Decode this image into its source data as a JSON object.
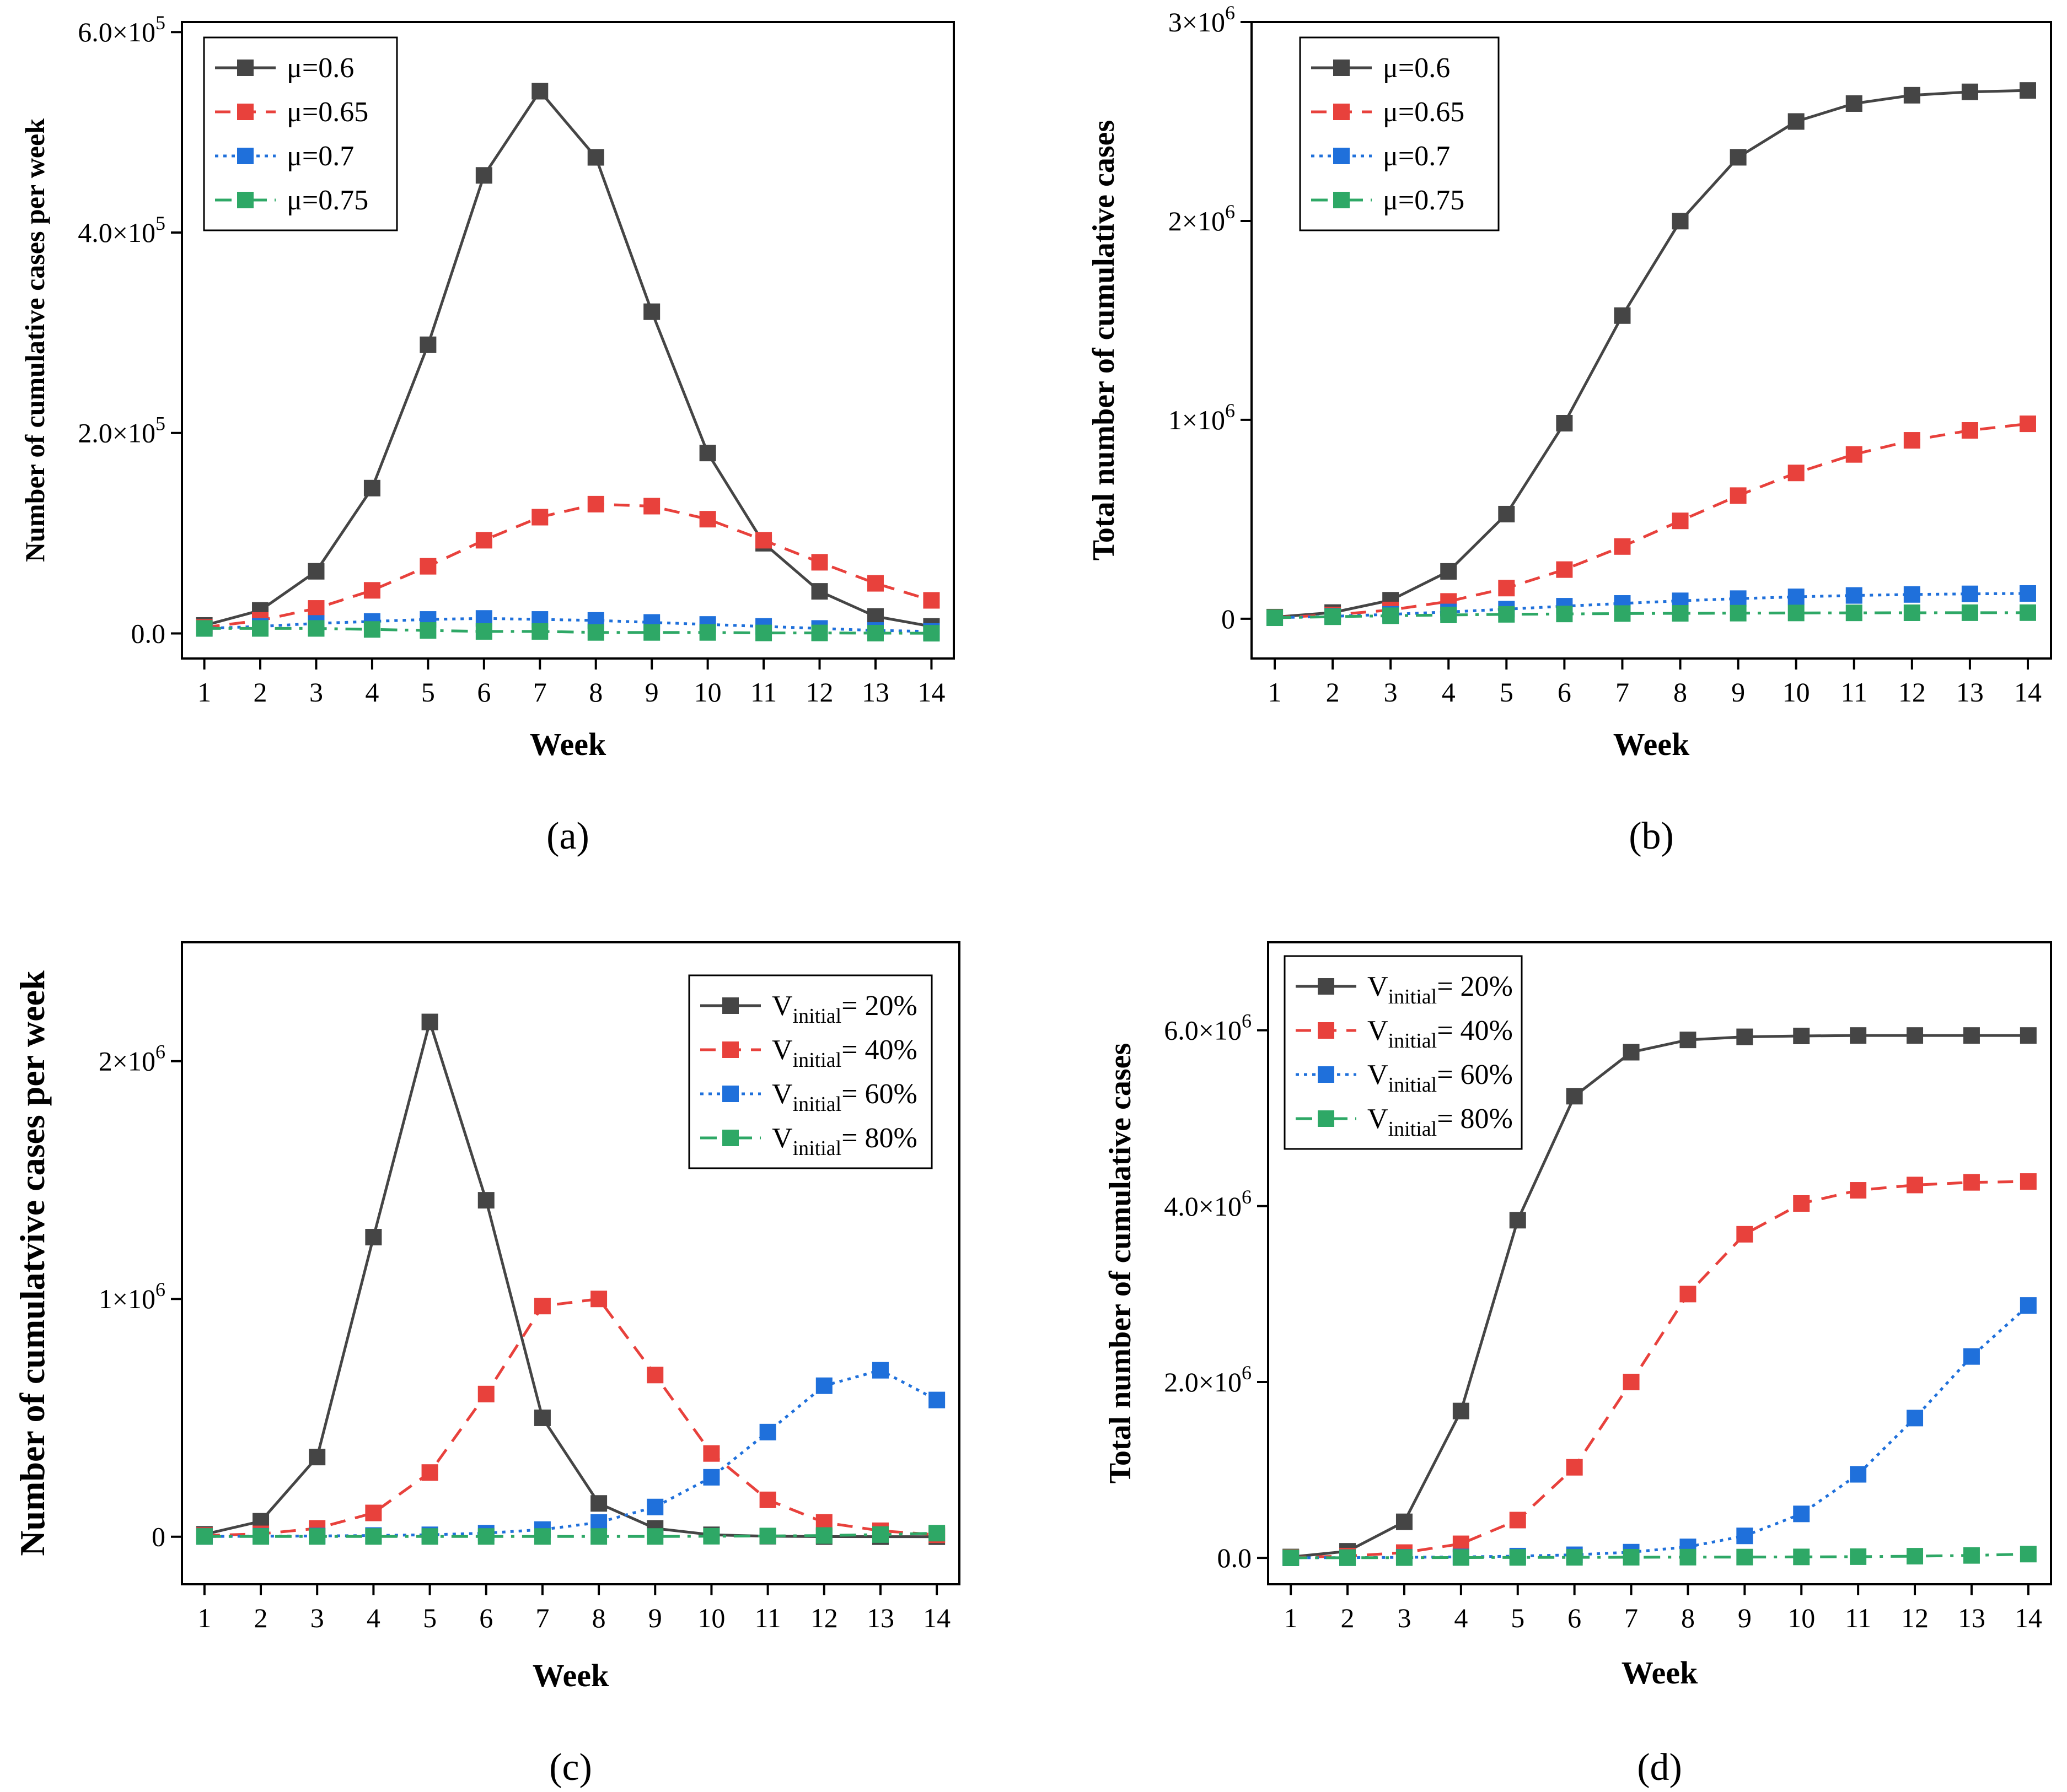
{
  "colors": {
    "black": "#454545",
    "red": "#e8413c",
    "blue": "#1f70db",
    "green": "#2ea866"
  },
  "chart_data": [
    {
      "type": "line",
      "panel": "a",
      "panel_label": "(a)",
      "xlabel": "Week",
      "ylabel": "Number of cumulative cases per week",
      "x": [
        1,
        2,
        3,
        4,
        5,
        6,
        7,
        8,
        9,
        10,
        11,
        12,
        13,
        14
      ],
      "xlim": [
        0.6,
        14.4
      ],
      "ylim": [
        -25000,
        610000
      ],
      "yticks": [
        0,
        200000,
        400000,
        600000
      ],
      "ytick_labels": [
        {
          "m": "0.0",
          "e": ""
        },
        {
          "m": "2.0×10",
          "e": "5"
        },
        {
          "m": "4.0×10",
          "e": "5"
        },
        {
          "m": "6.0×10",
          "e": "5"
        }
      ],
      "legend_position": "top-left",
      "series": [
        {
          "name": "μ=0.6",
          "label_main": "μ=0.6",
          "label_sub": "",
          "label_tail": "",
          "style": "solid",
          "color": "#454545",
          "values": [
            8000,
            23000,
            62000,
            145000,
            288000,
            457000,
            541000,
            475000,
            321000,
            180000,
            90000,
            42000,
            17000,
            7000
          ]
        },
        {
          "name": "μ=0.65",
          "label_main": "μ=0.65",
          "label_sub": "",
          "label_tail": "",
          "style": "dashed",
          "color": "#e8413c",
          "values": [
            6000,
            13000,
            25000,
            43000,
            67000,
            93000,
            116000,
            129000,
            127000,
            114000,
            93000,
            71000,
            50000,
            33000
          ]
        },
        {
          "name": "μ=0.7",
          "label_main": "μ=0.7",
          "label_sub": "",
          "label_tail": "",
          "style": "dotted",
          "color": "#1f70db",
          "values": [
            5000,
            7000,
            10000,
            12000,
            14000,
            15000,
            14000,
            13000,
            11000,
            9000,
            7000,
            5000,
            3000,
            2000
          ]
        },
        {
          "name": "μ=0.75",
          "label_main": "μ=0.75",
          "label_sub": "",
          "label_tail": "",
          "style": "dashdot",
          "color": "#2ea866",
          "values": [
            5000,
            5000,
            5000,
            4000,
            3000,
            2000,
            2000,
            1000,
            1000,
            1000,
            500,
            500,
            300,
            200
          ]
        }
      ]
    },
    {
      "type": "line",
      "panel": "b",
      "panel_label": "(b)",
      "xlabel": "Week",
      "ylabel": "Total number of cumulative cases",
      "x": [
        1,
        2,
        3,
        4,
        5,
        6,
        7,
        8,
        9,
        10,
        11,
        12,
        13,
        14
      ],
      "xlim": [
        0.6,
        14.4
      ],
      "ylim": [
        -200000,
        3000000
      ],
      "yticks": [
        0,
        1000000,
        2000000,
        3000000
      ],
      "ytick_labels": [
        {
          "m": "0",
          "e": ""
        },
        {
          "m": "1×10",
          "e": "6"
        },
        {
          "m": "2×10",
          "e": "6"
        },
        {
          "m": "3×10",
          "e": "6"
        }
      ],
      "legend_position": "top-left",
      "series": [
        {
          "name": "μ=0.6",
          "label_main": "μ=0.6",
          "label_sub": "",
          "label_tail": "",
          "style": "solid",
          "color": "#454545",
          "values": [
            8000,
            31000,
            93000,
            238000,
            526000,
            983000,
            1524000,
            1999000,
            2320000,
            2500000,
            2590000,
            2632000,
            2649000,
            2656000
          ]
        },
        {
          "name": "μ=0.65",
          "label_main": "μ=0.65",
          "label_sub": "",
          "label_tail": "",
          "style": "dashed",
          "color": "#e8413c",
          "values": [
            6000,
            19000,
            44000,
            87000,
            154000,
            247000,
            363000,
            492000,
            619000,
            733000,
            826000,
            897000,
            947000,
            980000
          ]
        },
        {
          "name": "μ=0.7",
          "label_main": "μ=0.7",
          "label_sub": "",
          "label_tail": "",
          "style": "dotted",
          "color": "#1f70db",
          "values": [
            5000,
            12000,
            22000,
            34000,
            48000,
            63000,
            77000,
            90000,
            101000,
            110000,
            117000,
            122000,
            125000,
            127000
          ]
        },
        {
          "name": "μ=0.75",
          "label_main": "μ=0.75",
          "label_sub": "",
          "label_tail": "",
          "style": "dashdot",
          "color": "#2ea866",
          "values": [
            5000,
            10000,
            15000,
            19000,
            22000,
            24000,
            26000,
            27000,
            28000,
            29000,
            29500,
            30000,
            30300,
            30500
          ]
        }
      ]
    },
    {
      "type": "line",
      "panel": "c",
      "panel_label": "(c)",
      "xlabel": "Week",
      "ylabel": "Number of cumulatvive cases per week",
      "x": [
        1,
        2,
        3,
        4,
        5,
        6,
        7,
        8,
        9,
        10,
        11,
        12,
        13,
        14
      ],
      "xlim": [
        0.6,
        14.4
      ],
      "ylim": [
        -200000,
        2500000
      ],
      "yticks": [
        0,
        1000000,
        2000000
      ],
      "ytick_labels": [
        {
          "m": "0",
          "e": ""
        },
        {
          "m": "1×10",
          "e": "6"
        },
        {
          "m": "2×10",
          "e": "6"
        }
      ],
      "legend_position": "top-right",
      "series": [
        {
          "name": "Vinitial= 20%",
          "label_main": "V",
          "label_sub": "initial",
          "label_tail": "= 20%",
          "style": "solid",
          "color": "#454545",
          "values": [
            10000,
            65000,
            335000,
            1260000,
            2165000,
            1415000,
            500000,
            140000,
            35000,
            8000,
            2000,
            500,
            100,
            0
          ]
        },
        {
          "name": "Vinitial= 40%",
          "label_main": "V",
          "label_sub": "initial",
          "label_tail": "= 40%",
          "style": "dashed",
          "color": "#e8413c",
          "values": [
            5000,
            12000,
            35000,
            100000,
            270000,
            600000,
            970000,
            1000000,
            680000,
            350000,
            155000,
            60000,
            25000,
            8000
          ]
        },
        {
          "name": "Vinitial= 60%",
          "label_main": "V",
          "label_sub": "initial",
          "label_tail": "= 60%",
          "style": "dotted",
          "color": "#1f70db",
          "values": [
            1000,
            2000,
            3000,
            5000,
            8000,
            15000,
            30000,
            60000,
            125000,
            250000,
            440000,
            635000,
            700000,
            575000
          ]
        },
        {
          "name": "Vinitial= 80%",
          "label_main": "V",
          "label_sub": "initial",
          "label_tail": "= 80%",
          "style": "dashdot",
          "color": "#2ea866",
          "values": [
            1000,
            1000,
            1000,
            1000,
            1000,
            1000,
            1000,
            1000,
            1000,
            2000,
            3000,
            5000,
            9000,
            15000
          ]
        }
      ]
    },
    {
      "type": "line",
      "panel": "d",
      "panel_label": "(d)",
      "xlabel": "Week",
      "ylabel": "Total number of cumulative cases",
      "x": [
        1,
        2,
        3,
        4,
        5,
        6,
        7,
        8,
        9,
        10,
        11,
        12,
        13,
        14
      ],
      "xlim": [
        0.6,
        14.4
      ],
      "ylim": [
        -300000,
        7000000
      ],
      "yticks": [
        0,
        2000000,
        4000000,
        6000000
      ],
      "ytick_labels": [
        {
          "m": "0.0",
          "e": ""
        },
        {
          "m": "2.0×10",
          "e": "6"
        },
        {
          "m": "4.0×10",
          "e": "6"
        },
        {
          "m": "6.0×10",
          "e": "6"
        }
      ],
      "legend_position": "top-left",
      "series": [
        {
          "name": "Vinitial= 20%",
          "label_main": "V",
          "label_sub": "initial",
          "label_tail": "= 20%",
          "style": "solid",
          "color": "#454545",
          "values": [
            10000,
            75000,
            410000,
            1670000,
            3840000,
            5250000,
            5750000,
            5890000,
            5925000,
            5935000,
            5940000,
            5940000,
            5940000,
            5940000
          ]
        },
        {
          "name": "Vinitial= 40%",
          "label_main": "V",
          "label_sub": "initial",
          "label_tail": "= 40%",
          "style": "dashed",
          "color": "#e8413c",
          "values": [
            5000,
            20000,
            60000,
            160000,
            430000,
            1030000,
            2000000,
            3000000,
            3680000,
            4030000,
            4180000,
            4240000,
            4270000,
            4280000
          ]
        },
        {
          "name": "Vinitial= 60%",
          "label_main": "V",
          "label_sub": "initial",
          "label_tail": "= 60%",
          "style": "dotted",
          "color": "#1f70db",
          "values": [
            1000,
            3000,
            6000,
            11000,
            20000,
            35000,
            65000,
            125000,
            250000,
            500000,
            950000,
            1590000,
            2290000,
            2870000
          ]
        },
        {
          "name": "Vinitial= 80%",
          "label_main": "V",
          "label_sub": "initial",
          "label_tail": "= 80%",
          "style": "dashdot",
          "color": "#2ea866",
          "values": [
            1000,
            2000,
            3000,
            4000,
            5000,
            6000,
            7000,
            8000,
            9000,
            11000,
            14000,
            19000,
            28000,
            43000
          ]
        }
      ]
    }
  ]
}
